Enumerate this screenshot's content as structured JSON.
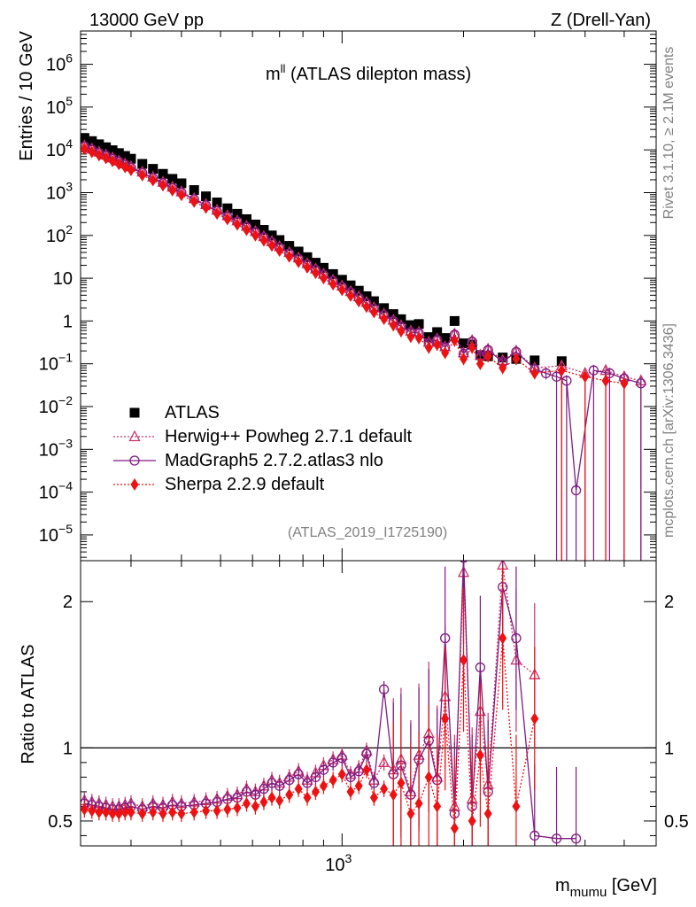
{
  "header": {
    "left": "13000 GeV pp",
    "right": "Z (Drell-Yan)"
  },
  "side": {
    "rivet": "Rivet 3.1.10, ≥ 2.1M events",
    "mcplots": "mcplots.cern.ch [arXiv:1306.3436]"
  },
  "main_title": {
    "var": "m",
    "sup": "ll",
    "desc": " (ATLAS dilepton mass)"
  },
  "analysis_tag": "(ATLAS_2019_I1725190)",
  "axes": {
    "ylabel_main": "Entries / 10 GeV",
    "ylabel_ratio": "Ratio to ATLAS",
    "xlabel_var": "m",
    "xlabel_sub": "mumu",
    "xlabel_unit": " [GeV]"
  },
  "colors": {
    "atlas": "#000000",
    "herwig": "#cc3366",
    "madgraph": "#801a80",
    "sherpa": "#ee1111"
  },
  "legend": [
    {
      "label": "ATLAS",
      "marker": "square",
      "color": "#000000"
    },
    {
      "label": "Herwig++ Powheg 2.7.1 default",
      "marker": "triangle",
      "color": "#cc3366"
    },
    {
      "label": "MadGraph5 2.7.2.atlas3 nlo",
      "marker": "circle",
      "color": "#801a80"
    },
    {
      "label": "Sherpa 2.2.9 default",
      "marker": "diamond",
      "color": "#ee1111"
    }
  ],
  "chart_data": [
    {
      "type": "scatter",
      "panel": "main",
      "xscale": "log",
      "yscale": "log",
      "xlim": [
        225,
        6000
      ],
      "ylim": [
        2.5e-06,
        6000000
      ],
      "yticks": [
        {
          "v": 1e-05,
          "m": "10",
          "e": "−5"
        },
        {
          "v": 0.0001,
          "m": "10",
          "e": "−4"
        },
        {
          "v": 0.001,
          "m": "10",
          "e": "−3"
        },
        {
          "v": 0.01,
          "m": "10",
          "e": "−2"
        },
        {
          "v": 0.1,
          "m": "10",
          "e": "−1"
        },
        {
          "v": 1,
          "m": "1",
          "e": ""
        },
        {
          "v": 10,
          "m": "10",
          "e": ""
        },
        {
          "v": 100,
          "m": "10",
          "e": "2"
        },
        {
          "v": 1000,
          "m": "10",
          "e": "3"
        },
        {
          "v": 10000,
          "m": "10",
          "e": "4"
        },
        {
          "v": 100000,
          "m": "10",
          "e": "5"
        },
        {
          "v": 1000000,
          "m": "10",
          "e": "6"
        }
      ],
      "xticks": [
        {
          "v": 1000,
          "m": "10",
          "e": "3"
        }
      ],
      "legend_position": "lower-left",
      "series": [
        {
          "name": "ATLAS",
          "x": [
            230,
            240,
            250,
            260,
            270,
            280,
            290,
            300,
            320,
            340,
            360,
            380,
            400,
            430,
            460,
            490,
            520,
            550,
            580,
            610,
            640,
            670,
            700,
            740,
            780,
            820,
            860,
            900,
            950,
            1000,
            1050,
            1100,
            1150,
            1200,
            1270,
            1340,
            1400,
            1480,
            1550,
            1640,
            1720,
            1800,
            1900,
            2000,
            2100,
            2200,
            2300,
            2500,
            2700,
            3000,
            3500
          ],
          "y": [
            19000,
            16000,
            13500,
            11500,
            9800,
            8400,
            7200,
            6200,
            4700,
            3600,
            2750,
            2100,
            1650,
            1150,
            820,
            590,
            430,
            320,
            240,
            180,
            135,
            100,
            78,
            57,
            42,
            31,
            23,
            17.5,
            12.5,
            9.2,
            6.8,
            5.1,
            3.8,
            2.9,
            2.0,
            1.45,
            1.1,
            0.8,
            0.85,
            0.42,
            0.55,
            0.4,
            1.0,
            0.3,
            0.28,
            0.16,
            0.15,
            0.14,
            0.13,
            0.12,
            0.115
          ]
        },
        {
          "name": "Herwig++ Powheg 2.7.1 default",
          "x": [
            230,
            240,
            250,
            260,
            270,
            280,
            290,
            300,
            320,
            340,
            360,
            380,
            400,
            430,
            460,
            490,
            520,
            550,
            580,
            610,
            640,
            670,
            700,
            740,
            780,
            820,
            860,
            900,
            950,
            1000,
            1050,
            1100,
            1150,
            1200,
            1270,
            1340,
            1400,
            1480,
            1550,
            1640,
            1720,
            1800,
            1900,
            2000,
            2100,
            2200,
            2300,
            2500,
            2700,
            3000,
            3500,
            4000,
            4500,
            5000,
            5500
          ],
          "y": [
            12500,
            10500,
            8900,
            7600,
            6500,
            5500,
            4700,
            4050,
            3050,
            2320,
            1760,
            1350,
            1050,
            730,
            530,
            390,
            290,
            220,
            165,
            124,
            94,
            72,
            55,
            40,
            30,
            22,
            16.5,
            12.5,
            9.0,
            6.6,
            4.9,
            3.7,
            2.75,
            2.05,
            1.45,
            1.05,
            0.78,
            0.58,
            0.55,
            0.32,
            0.38,
            0.25,
            0.5,
            0.18,
            0.35,
            0.16,
            0.22,
            0.12,
            0.2,
            0.08,
            0.09,
            0.06,
            0.07,
            0.05,
            0.04
          ]
        },
        {
          "name": "MadGraph5 2.7.2.atlas3 nlo",
          "x": [
            230,
            240,
            250,
            260,
            270,
            280,
            290,
            300,
            320,
            340,
            360,
            380,
            400,
            430,
            460,
            490,
            520,
            550,
            580,
            610,
            640,
            670,
            700,
            740,
            780,
            820,
            860,
            900,
            950,
            1000,
            1050,
            1100,
            1150,
            1200,
            1270,
            1340,
            1400,
            1480,
            1550,
            1640,
            1720,
            1800,
            1900,
            2000,
            2100,
            2200,
            2300,
            2500,
            2700,
            3000,
            3200,
            3400,
            3600,
            3800,
            4200,
            4600,
            5000,
            5500
          ],
          "y": [
            12000,
            10100,
            8500,
            7300,
            6200,
            5300,
            4500,
            3850,
            2900,
            2200,
            1670,
            1280,
            1000,
            700,
            505,
            370,
            275,
            210,
            158,
            118,
            90,
            69,
            52,
            38,
            28.5,
            21,
            15.8,
            12.0,
            8.6,
            6.3,
            4.7,
            3.5,
            2.6,
            1.95,
            1.38,
            1.0,
            0.74,
            0.55,
            0.52,
            0.3,
            0.36,
            0.24,
            0.48,
            0.17,
            0.33,
            0.15,
            0.21,
            0.11,
            0.19,
            0.075,
            0.06,
            0.05,
            0.04,
            0.00011,
            0.07,
            0.06,
            0.045,
            0.035
          ]
        },
        {
          "name": "Sherpa 2.2.9 default",
          "x": [
            230,
            240,
            250,
            260,
            270,
            280,
            290,
            300,
            320,
            340,
            360,
            380,
            400,
            430,
            460,
            490,
            520,
            550,
            580,
            610,
            640,
            670,
            700,
            740,
            780,
            820,
            860,
            900,
            950,
            1000,
            1050,
            1100,
            1150,
            1200,
            1270,
            1340,
            1400,
            1480,
            1550,
            1640,
            1720,
            1800,
            1900,
            2000,
            2100,
            2200,
            2300,
            2500,
            2700,
            3000,
            3500,
            4000,
            4500,
            5000
          ],
          "y": [
            10500,
            8900,
            7500,
            6400,
            5450,
            4650,
            3950,
            3400,
            2550,
            1950,
            1480,
            1130,
            880,
            615,
            445,
            325,
            240,
            180,
            135,
            100,
            76,
            58,
            44,
            32,
            24,
            17.8,
            13.3,
            10.0,
            7.2,
            5.3,
            3.9,
            2.9,
            2.15,
            1.6,
            1.12,
            0.8,
            0.58,
            0.43,
            0.4,
            0.24,
            0.28,
            0.18,
            0.35,
            0.13,
            0.24,
            0.1,
            0.15,
            0.08,
            0.13,
            0.06,
            0.07,
            0.05,
            0.04,
            0.035
          ]
        }
      ]
    },
    {
      "type": "scatter",
      "panel": "ratio",
      "xscale": "log",
      "xlim": [
        225,
        6000
      ],
      "ylim": [
        0.33,
        2.28
      ],
      "yticks": [
        {
          "v": 0.5,
          "label": "0.5"
        },
        {
          "v": 1,
          "label": "1"
        },
        {
          "v": 2,
          "label": "2"
        }
      ],
      "reference_line": 1,
      "series": [
        {
          "name": "Herwig++ Powheg 2.7.1 default",
          "x": [
            230,
            240,
            250,
            260,
            270,
            280,
            290,
            300,
            320,
            340,
            360,
            380,
            400,
            430,
            460,
            490,
            520,
            550,
            580,
            610,
            640,
            670,
            700,
            740,
            780,
            820,
            860,
            900,
            950,
            1000,
            1050,
            1100,
            1150,
            1200,
            1270,
            1340,
            1400,
            1480,
            1550,
            1640,
            1720,
            1800,
            1900,
            2000,
            2100,
            2200,
            2300,
            2500,
            2700,
            3000
          ],
          "y": [
            0.64,
            0.63,
            0.62,
            0.61,
            0.6,
            0.6,
            0.61,
            0.62,
            0.6,
            0.62,
            0.61,
            0.63,
            0.62,
            0.63,
            0.64,
            0.65,
            0.67,
            0.68,
            0.72,
            0.7,
            0.74,
            0.78,
            0.76,
            0.8,
            0.84,
            0.78,
            0.83,
            0.88,
            0.92,
            0.95,
            0.82,
            0.86,
            0.98,
            0.78,
            0.9,
            0.85,
            0.92,
            0.7,
            0.95,
            1.1,
            0.8,
            1.35,
            0.6,
            2.2,
            0.65,
            1.25,
            0.75,
            2.25,
            1.6,
            1.5
          ]
        },
        {
          "name": "MadGraph5 2.7.2.atlas3 nlo",
          "x": [
            230,
            240,
            250,
            260,
            270,
            280,
            290,
            300,
            320,
            340,
            360,
            380,
            400,
            430,
            460,
            490,
            520,
            550,
            580,
            610,
            640,
            670,
            700,
            740,
            780,
            820,
            860,
            900,
            950,
            1000,
            1050,
            1100,
            1150,
            1200,
            1270,
            1340,
            1400,
            1480,
            1550,
            1640,
            1720,
            1800,
            1900,
            2000,
            2100,
            2200,
            2300,
            2500,
            2700,
            3000,
            3400,
            3800
          ],
          "y": [
            0.62,
            0.61,
            0.6,
            0.59,
            0.58,
            0.58,
            0.59,
            0.6,
            0.58,
            0.6,
            0.59,
            0.61,
            0.6,
            0.61,
            0.62,
            0.63,
            0.65,
            0.66,
            0.7,
            0.68,
            0.72,
            0.76,
            0.74,
            0.78,
            0.82,
            0.76,
            0.8,
            0.85,
            0.9,
            0.93,
            0.8,
            0.84,
            0.96,
            0.76,
            1.4,
            0.82,
            0.88,
            0.68,
            0.92,
            1.05,
            0.78,
            1.75,
            0.55,
            2.3,
            0.6,
            1.55,
            0.7,
            2.1,
            1.75,
            0.4,
            0.38,
            0.38
          ]
        },
        {
          "name": "Sherpa 2.2.9 default",
          "x": [
            230,
            240,
            250,
            260,
            270,
            280,
            290,
            300,
            320,
            340,
            360,
            380,
            400,
            430,
            460,
            490,
            520,
            550,
            580,
            610,
            640,
            670,
            700,
            740,
            780,
            820,
            860,
            900,
            950,
            1000,
            1050,
            1100,
            1150,
            1200,
            1270,
            1340,
            1400,
            1480,
            1550,
            1640,
            1720,
            1800,
            1900,
            2000,
            2100,
            2200,
            2300,
            2500,
            2700,
            3000
          ],
          "y": [
            0.58,
            0.57,
            0.56,
            0.56,
            0.55,
            0.55,
            0.56,
            0.56,
            0.55,
            0.56,
            0.55,
            0.56,
            0.55,
            0.56,
            0.57,
            0.57,
            0.58,
            0.59,
            0.62,
            0.6,
            0.63,
            0.66,
            0.64,
            0.68,
            0.72,
            0.66,
            0.7,
            0.74,
            0.78,
            0.82,
            0.7,
            0.74,
            0.85,
            0.66,
            0.72,
            0.68,
            0.76,
            0.55,
            0.62,
            0.8,
            0.6,
            1.2,
            0.45,
            1.6,
            0.5,
            0.95,
            0.55,
            1.75,
            0.6,
            1.2
          ]
        }
      ]
    }
  ]
}
